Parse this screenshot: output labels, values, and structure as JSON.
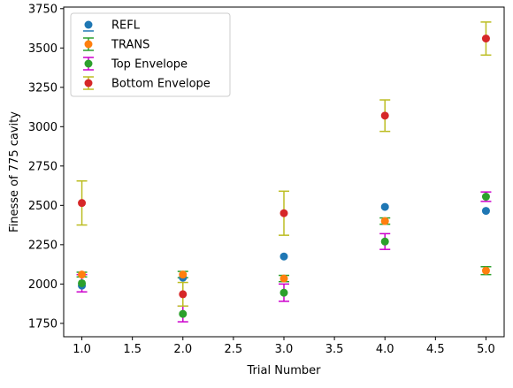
{
  "chart_data": {
    "type": "scatter",
    "title": "",
    "xlabel": "Trial Number",
    "ylabel": "Finesse of 775 cavity",
    "xlim": [
      0.82,
      5.18
    ],
    "ylim": [
      1665,
      3760
    ],
    "x_ticks": [
      1.0,
      1.5,
      2.0,
      2.5,
      3.0,
      3.5,
      4.0,
      4.5,
      5.0
    ],
    "x_tick_labels": [
      "1.0",
      "1.5",
      "2.0",
      "2.5",
      "3.0",
      "3.5",
      "4.0",
      "4.5",
      "5.0"
    ],
    "y_ticks": [
      1750,
      2000,
      2250,
      2500,
      2750,
      3000,
      3250,
      3500,
      3750
    ],
    "y_tick_labels": [
      "1750",
      "2000",
      "2250",
      "2500",
      "2750",
      "3000",
      "3250",
      "3500",
      "3750"
    ],
    "grid": false,
    "legend_position": "top-left",
    "x": [
      1,
      2,
      3,
      4,
      5
    ],
    "series": [
      {
        "name": "REFL",
        "color": "#1f77b4",
        "errcolor": "#1f77b4",
        "values": [
          1990,
          2040,
          2175,
          2490,
          2465
        ],
        "err": [
          null,
          null,
          null,
          null,
          null
        ]
      },
      {
        "name": "TRANS",
        "color": "#ff7f0e",
        "errcolor": "#2ca02c",
        "values": [
          2060,
          2060,
          2035,
          2400,
          2085
        ],
        "err": [
          15,
          20,
          20,
          20,
          25
        ]
      },
      {
        "name": "Top Envelope",
        "color": "#2ca02c",
        "errcolor": "#cc00cc",
        "values": [
          2005,
          1810,
          1945,
          2270,
          2555
        ],
        "err": [
          55,
          50,
          55,
          50,
          30
        ]
      },
      {
        "name": "Bottom Envelope",
        "color": "#d62728",
        "errcolor": "#bcbd22",
        "values": [
          2515,
          1935,
          2450,
          3070,
          3560
        ],
        "err": [
          140,
          75,
          140,
          100,
          105
        ]
      }
    ]
  }
}
